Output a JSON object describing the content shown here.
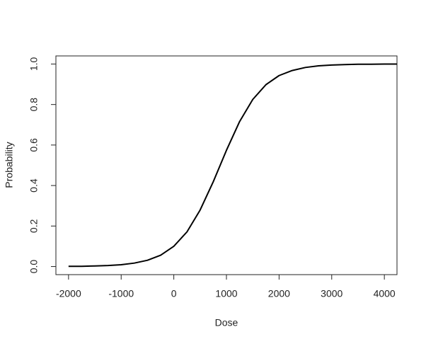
{
  "chart_data": {
    "type": "line",
    "xlabel": "Dose",
    "ylabel": "Probability",
    "x": [
      -2000,
      -1750,
      -1500,
      -1250,
      -1000,
      -750,
      -500,
      -250,
      0,
      250,
      500,
      750,
      1000,
      1250,
      1500,
      1750,
      2000,
      2250,
      2500,
      2750,
      3000,
      3250,
      3500,
      3750,
      4000,
      4240
    ],
    "series": [
      {
        "color": "#000000",
        "values": [
          0.001,
          0.001,
          0.003,
          0.005,
          0.009,
          0.017,
          0.031,
          0.056,
          0.1,
          0.171,
          0.279,
          0.419,
          0.574,
          0.716,
          0.825,
          0.898,
          0.943,
          0.968,
          0.983,
          0.991,
          0.995,
          0.997,
          0.999,
          0.999,
          1.0,
          1.0
        ]
      }
    ],
    "xlim": [
      -2240,
      4240
    ],
    "ylim": [
      -0.04,
      1.04
    ],
    "xticks": [
      -2000,
      -1000,
      0,
      1000,
      2000,
      3000,
      4000
    ],
    "yticks": [
      {
        "value": 0,
        "label": "0.0"
      },
      0.2,
      0.4,
      0.6,
      0.8,
      {
        "value": 1,
        "label": "1.0"
      }
    ]
  }
}
